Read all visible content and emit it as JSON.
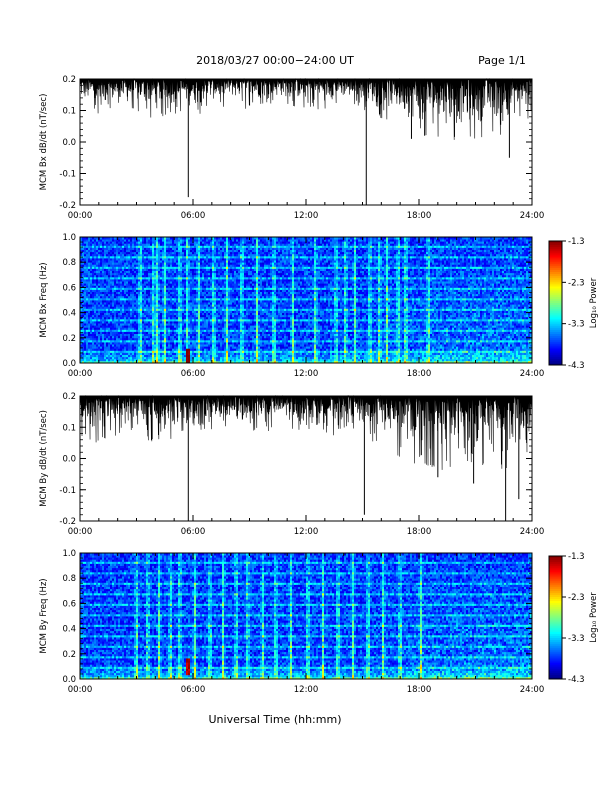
{
  "header": {
    "title": "2018/03/27   00:00−24:00 UT",
    "page": "Page 1/1"
  },
  "xlabel": "Universal Time (hh:mm)",
  "colorbar": {
    "label": "Log₁₀ Power",
    "ticks": [
      "-1.3",
      "-2.3",
      "-3.3",
      "-4.3"
    ],
    "range": [
      -4.3,
      -1.3
    ]
  },
  "chart_data": [
    {
      "type": "line",
      "ylabel": "MCM Bx dB/dt (nT/sec)",
      "x_ticks": [
        "00:00",
        "06:00",
        "12:00",
        "18:00",
        "24:00"
      ],
      "y_ticks": [
        "0.2",
        "0.1",
        "0.0",
        "-0.1",
        "-0.2"
      ],
      "xlim": [
        0,
        24
      ],
      "ylim": [
        -0.2,
        0.2
      ],
      "envelope": {
        "hours": [
          0,
          1,
          2,
          3,
          4,
          5,
          6,
          7,
          8,
          9,
          10,
          11,
          12,
          13,
          14,
          15,
          16,
          17,
          18,
          19,
          20,
          21,
          22,
          23,
          24
        ],
        "lower": [
          0.13,
          0.11,
          0.12,
          0.12,
          0.11,
          0.12,
          0.11,
          0.13,
          0.14,
          0.13,
          0.14,
          0.14,
          0.13,
          0.13,
          0.14,
          0.13,
          0.11,
          0.09,
          0.06,
          0.06,
          0.05,
          0.06,
          0.07,
          0.08,
          0.1
        ],
        "upper": [
          0.2,
          0.2,
          0.2,
          0.2,
          0.2,
          0.2,
          0.2,
          0.2,
          0.2,
          0.2,
          0.2,
          0.2,
          0.2,
          0.2,
          0.2,
          0.2,
          0.2,
          0.2,
          0.2,
          0.2,
          0.2,
          0.2,
          0.2,
          0.2,
          0.2
        ]
      },
      "spikes": [
        {
          "hour": 5.75,
          "value": -0.175
        },
        {
          "hour": 15.2,
          "value": -0.2
        },
        {
          "hour": 17.6,
          "value": 0.01
        },
        {
          "hour": 18.3,
          "value": 0.02
        },
        {
          "hour": 22.8,
          "value": -0.05
        }
      ]
    },
    {
      "type": "heatmap",
      "ylabel": "MCM Bx Freq (Hz)",
      "x_ticks": [
        "00:00",
        "06:00",
        "12:00",
        "18:00",
        "24:00"
      ],
      "y_ticks": [
        "1.0",
        "0.8",
        "0.6",
        "0.4",
        "0.2",
        "0.0"
      ],
      "xlim": [
        0,
        24
      ],
      "ylim": [
        0,
        1.0
      ],
      "zlim": [
        -4.3,
        -1.3
      ],
      "bright_bands_hours": [
        3.2,
        3.9,
        4.1,
        4.5,
        5.3,
        5.7,
        6.3,
        7.1,
        7.8,
        8.6,
        9.4,
        10.3,
        11.3,
        12.5,
        13.6,
        14.1,
        14.6,
        15.4,
        15.9,
        16.3,
        16.9,
        17.3,
        18.5
      ],
      "hot_spot": {
        "hour": 5.7,
        "freq": 0.05,
        "value": -1.4
      }
    },
    {
      "type": "line",
      "ylabel": "MCM By dB/dt (nT/sec)",
      "x_ticks": [
        "00:00",
        "06:00",
        "12:00",
        "18:00",
        "24:00"
      ],
      "y_ticks": [
        "0.2",
        "0.1",
        "0.0",
        "-0.1",
        "-0.2"
      ],
      "xlim": [
        0,
        24
      ],
      "ylim": [
        -0.2,
        0.2
      ],
      "envelope": {
        "hours": [
          0,
          1,
          2,
          3,
          4,
          5,
          6,
          7,
          8,
          9,
          10,
          11,
          12,
          13,
          14,
          15,
          16,
          17,
          18,
          19,
          20,
          21,
          22,
          23,
          24
        ],
        "lower": [
          0.1,
          0.09,
          0.11,
          0.1,
          0.09,
          0.1,
          0.09,
          0.1,
          0.11,
          0.11,
          0.12,
          0.12,
          0.11,
          0.11,
          0.11,
          0.1,
          0.08,
          0.06,
          0.04,
          0.03,
          0.02,
          0.03,
          0.02,
          0.03,
          0.06
        ],
        "upper": [
          0.2,
          0.2,
          0.2,
          0.2,
          0.2,
          0.2,
          0.2,
          0.2,
          0.2,
          0.2,
          0.2,
          0.2,
          0.2,
          0.2,
          0.2,
          0.2,
          0.2,
          0.2,
          0.2,
          0.2,
          0.2,
          0.2,
          0.2,
          0.2,
          0.2
        ]
      },
      "spikes": [
        {
          "hour": 5.75,
          "value": -0.2
        },
        {
          "hour": 15.1,
          "value": -0.18
        },
        {
          "hour": 19.0,
          "value": -0.06
        },
        {
          "hour": 20.9,
          "value": -0.08
        },
        {
          "hour": 22.6,
          "value": -0.2
        },
        {
          "hour": 23.3,
          "value": -0.13
        }
      ]
    },
    {
      "type": "heatmap",
      "ylabel": "MCM By Freq (Hz)",
      "x_ticks": [
        "00:00",
        "06:00",
        "12:00",
        "18:00",
        "24:00"
      ],
      "y_ticks": [
        "1.0",
        "0.8",
        "0.6",
        "0.4",
        "0.2",
        "0.0"
      ],
      "xlim": [
        0,
        24
      ],
      "ylim": [
        0,
        1.0
      ],
      "zlim": [
        -4.3,
        -1.3
      ],
      "bright_bands_hours": [
        3.0,
        3.6,
        4.2,
        4.8,
        5.3,
        6.1,
        6.9,
        7.6,
        8.3,
        8.9,
        9.7,
        10.4,
        11.2,
        12.1,
        12.9,
        13.7,
        14.5,
        15.3,
        16.1,
        17.0,
        18.1
      ],
      "hot_spot": {
        "hour": 5.7,
        "freq": 0.1,
        "value": -1.6
      }
    }
  ]
}
